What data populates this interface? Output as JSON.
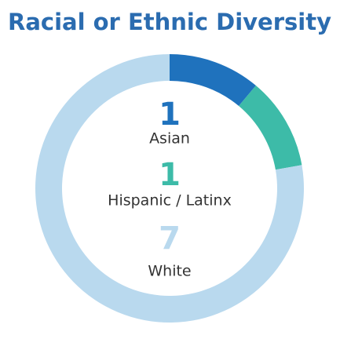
{
  "chart_data": {
    "type": "donut",
    "title": "Racial or Ethnic Diversity",
    "categories": [
      "Asian",
      "Hispanic / Latinx",
      "White"
    ],
    "values": [
      1,
      1,
      7
    ],
    "colors": [
      "#1f72bd",
      "#3dbba8",
      "#b9d9ee"
    ]
  }
}
